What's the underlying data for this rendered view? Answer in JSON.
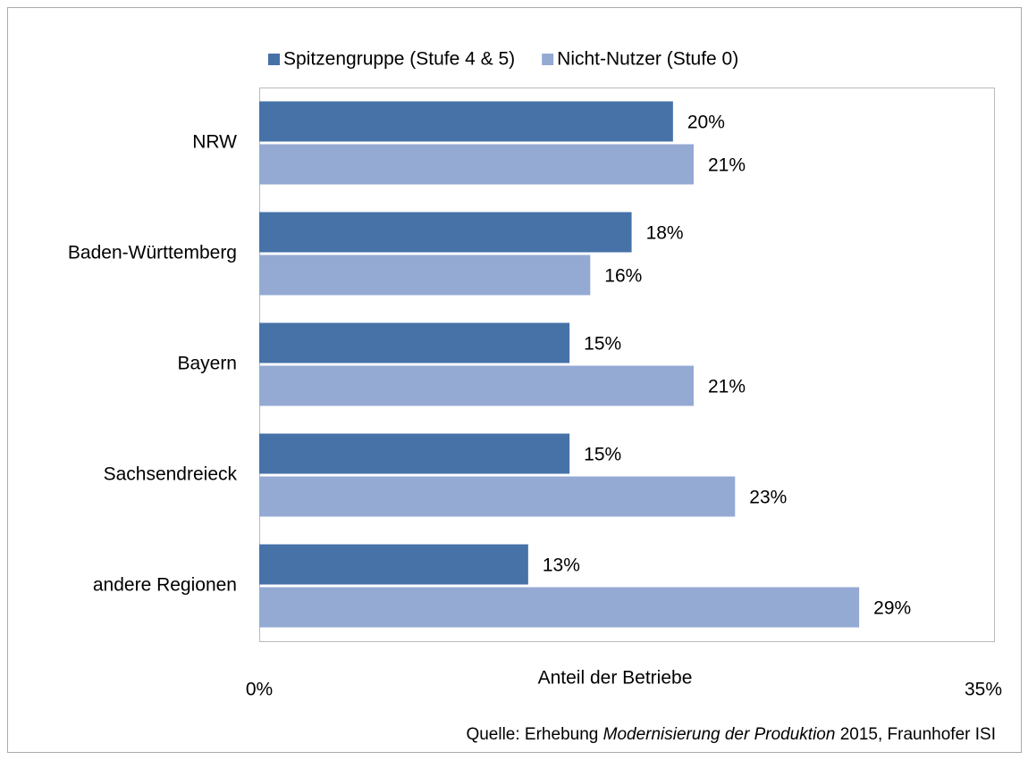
{
  "chart_data": {
    "type": "hbar",
    "categories": [
      "NRW",
      "Baden-Württemberg",
      "Bayern",
      "Sachsendreieck",
      "andere Regionen"
    ],
    "series": [
      {
        "name": "Spitzengruppe (Stufe 4 & 5)",
        "color": "#4672a8",
        "values": [
          20,
          18,
          15,
          15,
          13
        ],
        "value_labels": [
          "20%",
          "18%",
          "15%",
          "15%",
          "13%"
        ]
      },
      {
        "name": "Nicht-Nutzer (Stufe 0)",
        "color": "#94aad3",
        "values": [
          21,
          16,
          21,
          23,
          29
        ],
        "value_labels": [
          "21%",
          "16%",
          "21%",
          "23%",
          "29%"
        ]
      }
    ],
    "xlabel": "Anteil der Betriebe",
    "xlim": [
      0,
      35
    ],
    "xticks": [
      {
        "value": 0,
        "label": "0%"
      },
      {
        "value": 35,
        "label": "35%"
      }
    ],
    "legend": "top",
    "source": [
      "Quelle: Erhebung",
      "Modernisierung der Produktion",
      "2015, Fraunhofer ISI"
    ]
  }
}
